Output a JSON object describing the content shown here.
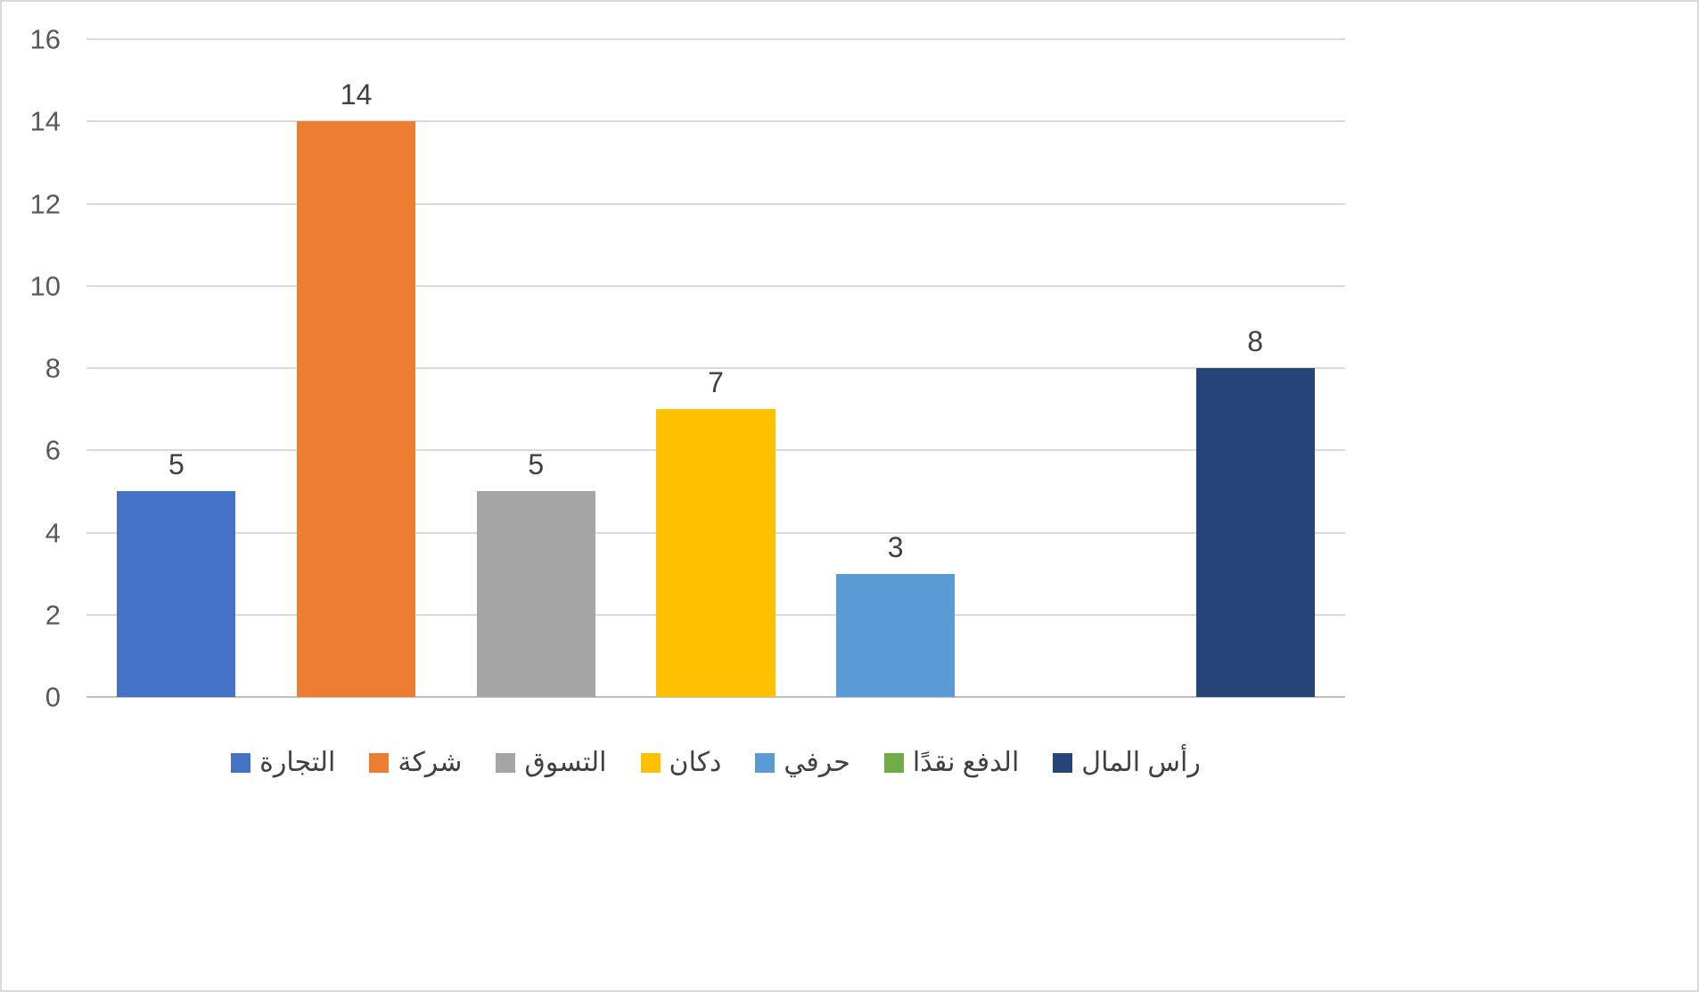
{
  "chart_data": {
    "type": "bar",
    "title": "",
    "xlabel": "",
    "ylabel": "",
    "categories": [
      "التجارة",
      "شركة",
      "التسوق",
      "دكان",
      "حرفي",
      "الدفع نقدًا",
      "رأس المال"
    ],
    "values": [
      5,
      14,
      5,
      7,
      3,
      0,
      8
    ],
    "colors": [
      "#4472C4",
      "#ED7D31",
      "#A5A5A5",
      "#FFC000",
      "#5B9BD5",
      "#70AD47",
      "#264478"
    ],
    "ylim": [
      0,
      16
    ],
    "yticks": [
      0,
      2,
      4,
      6,
      8,
      10,
      12,
      14,
      16
    ],
    "grid": true,
    "data_labels_shown": true,
    "zero_value_label_hidden": true,
    "legend_position": "bottom"
  },
  "style": {
    "background": "#FFFFFF",
    "frame_border": "#D9D9D9",
    "gridline_color": "#D9D9D9",
    "axis_line_color": "#BFBFBF",
    "tick_label_color": "#595959",
    "data_label_color": "#404040",
    "legend_label_color": "#404040",
    "bar_slot_ratio": 0.66
  }
}
